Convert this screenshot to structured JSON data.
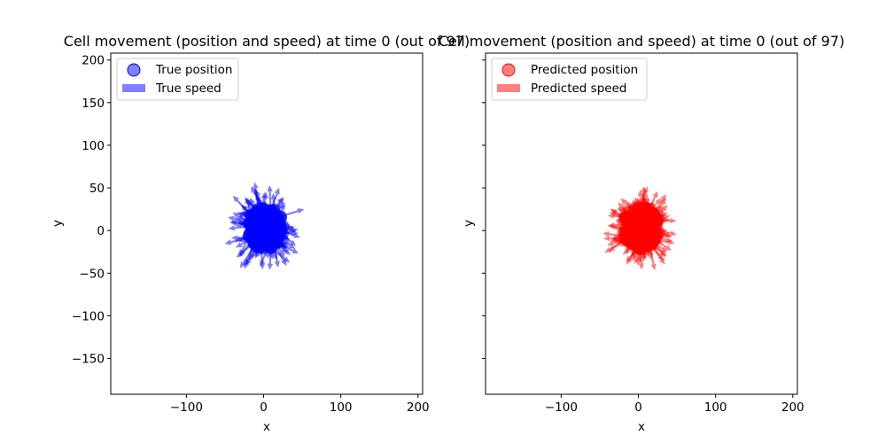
{
  "chart_data": [
    {
      "type": "scatter",
      "title": "Cell movement (position and speed) at time 0 (out of 97)",
      "xlabel": "x",
      "ylabel": "y",
      "xlim": [
        -198,
        206
      ],
      "ylim": [
        -192,
        208
      ],
      "xticks": [
        -100,
        0,
        100,
        200
      ],
      "xtick_labels": [
        "−100",
        "0",
        "100",
        "200"
      ],
      "yticks": [
        -150,
        -100,
        -50,
        0,
        50,
        100,
        150,
        200
      ],
      "ytick_labels": [
        "−150",
        "−100",
        "−50",
        "0",
        "50",
        "100",
        "150",
        "200"
      ],
      "grid": false,
      "legend_position": "top-left",
      "legend": [
        "True position",
        "True speed"
      ],
      "color": "#0000ff",
      "cluster": {
        "center": [
          3,
          3
        ],
        "radius": 25,
        "max_speed": 28,
        "count": 160
      }
    },
    {
      "type": "scatter",
      "title": "Cell movement (position and speed) at time 0 (out of 97)",
      "xlabel": "x",
      "ylabel": "y",
      "xlim": [
        -198,
        206
      ],
      "ylim": [
        -192,
        208
      ],
      "xticks": [
        -100,
        0,
        100,
        200
      ],
      "xtick_labels": [
        "−100",
        "0",
        "100",
        "200"
      ],
      "yticks": [
        -150,
        -100,
        -50,
        0,
        50,
        100,
        150,
        200
      ],
      "ytick_labels": [],
      "grid": false,
      "legend_position": "top-left",
      "legend": [
        "Predicted position",
        "Predicted speed"
      ],
      "color": "#ff0000",
      "cluster": {
        "center": [
          4,
          3
        ],
        "radius": 25,
        "max_speed": 26,
        "count": 160
      }
    }
  ]
}
